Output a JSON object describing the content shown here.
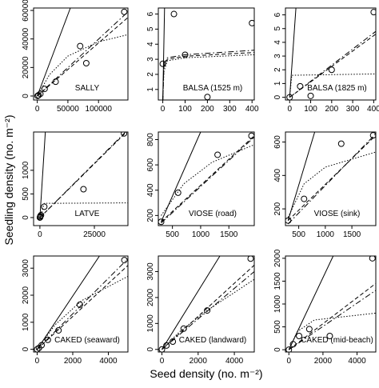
{
  "xlabel": "Seed density (no. m⁻²)",
  "ylabel": "Seedling density (no. m⁻²)",
  "chart_data": [
    {
      "type": "scatter",
      "label": "SALLY",
      "xlim": [
        -6000,
        148000
      ],
      "ylim": [
        -2800,
        61700
      ],
      "xticks": [
        0,
        50000,
        100000
      ],
      "yticks": [
        0,
        20000,
        40000,
        60000
      ],
      "x": [
        142000,
        70000,
        80000,
        30000,
        12000,
        5000,
        2000,
        500
      ],
      "y": [
        59000,
        35000,
        23000,
        10000,
        5000,
        1500,
        500,
        100
      ],
      "lines": [
        {
          "style": "solid",
          "x": [
            0,
            54000
          ],
          "y": [
            0,
            61700
          ]
        },
        {
          "style": "dashed",
          "x": [
            0,
            148000
          ],
          "y": [
            0,
            55000
          ]
        },
        {
          "style": "dashdot",
          "x": [
            0,
            148000
          ],
          "y": [
            0,
            59000
          ]
        },
        {
          "style": "dotted",
          "x": [
            0,
            20000,
            50000,
            100000,
            148000
          ],
          "y": [
            0,
            15000,
            28000,
            38000,
            43000
          ]
        }
      ]
    },
    {
      "type": "scatter",
      "label": "BALSA (1525 m)",
      "xlim": [
        -20,
        410
      ],
      "ylim": [
        0.3,
        6.4
      ],
      "xticks": [
        0,
        100,
        200,
        300,
        400
      ],
      "yticks": [
        1,
        2,
        3,
        4,
        5,
        6
      ],
      "x": [
        0,
        50,
        100,
        200,
        400
      ],
      "y": [
        2.7,
        6,
        3.3,
        0.5,
        5.4
      ],
      "lines": [
        {
          "style": "solid",
          "x": [
            0,
            8
          ],
          "y": [
            0.3,
            6.4
          ]
        },
        {
          "style": "dashed",
          "x": [
            0,
            5,
            20,
            100,
            410
          ],
          "y": [
            0.3,
            2.5,
            3.0,
            3.2,
            3.45
          ]
        },
        {
          "style": "dashdot",
          "x": [
            0,
            5,
            20,
            100,
            410
          ],
          "y": [
            0.3,
            2.7,
            3.1,
            3.3,
            3.6
          ]
        },
        {
          "style": "dotted",
          "x": [
            0,
            5,
            20,
            100,
            410
          ],
          "y": [
            0.3,
            2.2,
            2.9,
            3.1,
            3.3
          ]
        }
      ]
    },
    {
      "type": "scatter",
      "label": "BALSA (1825 m)",
      "xlim": [
        -20,
        410
      ],
      "ylim": [
        -0.2,
        6.5
      ],
      "xticks": [
        0,
        100,
        200,
        300,
        400
      ],
      "yticks": [
        0,
        1,
        2,
        3,
        4,
        5,
        6
      ],
      "x": [
        0,
        50,
        100,
        200,
        400
      ],
      "y": [
        0,
        0.8,
        0.1,
        2.0,
        6.2
      ],
      "lines": [
        {
          "style": "solid",
          "x": [
            0,
            30
          ],
          "y": [
            0,
            6.5
          ]
        },
        {
          "style": "dashed",
          "x": [
            0,
            410
          ],
          "y": [
            0,
            4.6
          ]
        },
        {
          "style": "dashdot",
          "x": [
            0,
            410
          ],
          "y": [
            0,
            4.8
          ]
        },
        {
          "style": "dotted",
          "x": [
            0,
            10,
            410
          ],
          "y": [
            0,
            1.6,
            1.7
          ]
        }
      ]
    },
    {
      "type": "scatter",
      "label": "LATVE",
      "xlim": [
        -2900,
        40400
      ],
      "ylim": [
        -170,
        1810
      ],
      "xticks": [
        0,
        25000
      ],
      "yticks": [
        0,
        500,
        1000
      ],
      "x": [
        38600,
        20000,
        2000,
        500,
        200,
        100,
        0
      ],
      "y": [
        1780,
        600,
        230,
        50,
        30,
        10,
        0
      ],
      "lines": [
        {
          "style": "solid",
          "x": [
            0,
            2500
          ],
          "y": [
            0,
            1810
          ]
        },
        {
          "style": "dashed",
          "x": [
            0,
            40400
          ],
          "y": [
            0,
            1840
          ]
        },
        {
          "style": "dashdot",
          "x": [
            0,
            40400
          ],
          "y": [
            0,
            1860
          ]
        },
        {
          "style": "dotted",
          "x": [
            0,
            2000,
            40400
          ],
          "y": [
            0,
            300,
            310
          ]
        }
      ]
    },
    {
      "type": "scatter",
      "label": "VIOSE (road)",
      "xlim": [
        250,
        1950
      ],
      "ylim": [
        120,
        860
      ],
      "xticks": [
        500,
        1000,
        1500
      ],
      "yticks": [
        200,
        400,
        600,
        800
      ],
      "x": [
        300,
        600,
        1300,
        1900
      ],
      "y": [
        150,
        380,
        680,
        830
      ],
      "lines": [
        {
          "style": "solid",
          "x": [
            300,
            1000
          ],
          "y": [
            150,
            860
          ]
        },
        {
          "style": "dashed",
          "x": [
            300,
            1950
          ],
          "y": [
            150,
            830
          ]
        },
        {
          "style": "dashdot",
          "x": [
            300,
            1950
          ],
          "y": [
            140,
            820
          ]
        },
        {
          "style": "dotted",
          "x": [
            300,
            700,
            1200,
            1950
          ],
          "y": [
            200,
            450,
            620,
            760
          ]
        }
      ]
    },
    {
      "type": "scatter",
      "label": "VIOSE (sink)",
      "xlim": [
        250,
        1950
      ],
      "ylim": [
        100,
        660
      ],
      "xticks": [
        500,
        1000,
        1500
      ],
      "yticks": [
        200,
        400,
        600
      ],
      "x": [
        300,
        600,
        1300,
        1900
      ],
      "y": [
        130,
        260,
        590,
        640
      ],
      "lines": [
        {
          "style": "solid",
          "x": [
            300,
            800
          ],
          "y": [
            130,
            660
          ]
        },
        {
          "style": "dashed",
          "x": [
            300,
            1950
          ],
          "y": [
            130,
            640
          ]
        },
        {
          "style": "dashdot",
          "x": [
            300,
            1950
          ],
          "y": [
            110,
            650
          ]
        },
        {
          "style": "dotted",
          "x": [
            300,
            600,
            1000,
            1950
          ],
          "y": [
            150,
            350,
            450,
            540
          ]
        }
      ]
    },
    {
      "type": "scatter",
      "label": "CAKED (seaward)",
      "xlim": [
        -200,
        5100
      ],
      "ylim": [
        -100,
        3450
      ],
      "xticks": [
        0,
        2000,
        4000
      ],
      "yticks": [
        0,
        1000,
        2000,
        3000
      ],
      "x": [
        4900,
        2400,
        1200,
        600,
        250,
        100,
        0
      ],
      "y": [
        3300,
        1650,
        700,
        350,
        150,
        50,
        0
      ],
      "lines": [
        {
          "style": "solid",
          "x": [
            0,
            3500
          ],
          "y": [
            0,
            3450
          ]
        },
        {
          "style": "dashed",
          "x": [
            0,
            5100
          ],
          "y": [
            0,
            3100
          ]
        },
        {
          "style": "dashdot",
          "x": [
            0,
            5100
          ],
          "y": [
            0,
            3350
          ]
        },
        {
          "style": "dotted",
          "x": [
            0,
            1000,
            2500,
            5100
          ],
          "y": [
            0,
            900,
            1800,
            2700
          ]
        }
      ]
    },
    {
      "type": "scatter",
      "label": "CAKED (landward)",
      "xlim": [
        -200,
        5100
      ],
      "ylim": [
        -100,
        3600
      ],
      "xticks": [
        0,
        2000,
        4000
      ],
      "yticks": [
        0,
        1000,
        2000,
        3000
      ],
      "x": [
        4900,
        2500,
        1200,
        600,
        250,
        0
      ],
      "y": [
        3500,
        1500,
        800,
        300,
        150,
        0
      ],
      "lines": [
        {
          "style": "solid",
          "x": [
            0,
            3200
          ],
          "y": [
            0,
            3600
          ]
        },
        {
          "style": "dashed",
          "x": [
            0,
            5100
          ],
          "y": [
            0,
            3250
          ]
        },
        {
          "style": "dashdot",
          "x": [
            0,
            5100
          ],
          "y": [
            0,
            3000
          ]
        },
        {
          "style": "dotted",
          "x": [
            0,
            1000,
            2500,
            5100
          ],
          "y": [
            0,
            700,
            1500,
            2700
          ]
        }
      ]
    },
    {
      "type": "scatter",
      "label": "CAKED (mid-beach)",
      "xlim": [
        -200,
        5100
      ],
      "ylim": [
        -50,
        2050
      ],
      "xticks": [
        0,
        2000,
        4000
      ],
      "yticks": [
        0,
        500,
        1000,
        1500,
        2000
      ],
      "x": [
        4900,
        2400,
        1200,
        600,
        250,
        0
      ],
      "y": [
        2000,
        300,
        450,
        300,
        120,
        0
      ],
      "lines": [
        {
          "style": "solid",
          "x": [
            0,
            2600
          ],
          "y": [
            0,
            2050
          ]
        },
        {
          "style": "dashed",
          "x": [
            0,
            5100
          ],
          "y": [
            0,
            1450
          ]
        },
        {
          "style": "dashdot",
          "x": [
            0,
            5100
          ],
          "y": [
            0,
            1300
          ]
        },
        {
          "style": "dotted",
          "x": [
            0,
            500,
            1500,
            5100
          ],
          "y": [
            0,
            400,
            650,
            800
          ]
        }
      ]
    }
  ]
}
